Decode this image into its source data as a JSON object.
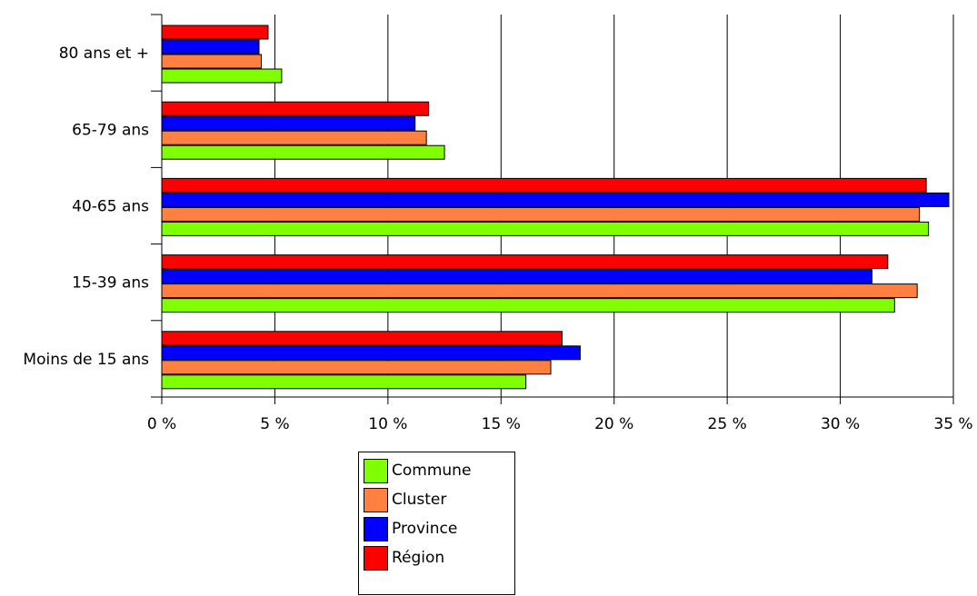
{
  "chart_data": {
    "type": "bar",
    "orientation": "horizontal",
    "categories": [
      "Moins de 15 ans",
      "15-39 ans",
      "40-65 ans",
      "65-79 ans",
      "80 ans et +"
    ],
    "series": [
      {
        "name": "Commune",
        "color": "#80ff00",
        "values": [
          16.1,
          32.4,
          33.9,
          12.5,
          5.3
        ]
      },
      {
        "name": "Cluster",
        "color": "#ff8040",
        "values": [
          17.2,
          33.4,
          33.5,
          11.7,
          4.4
        ]
      },
      {
        "name": "Province",
        "color": "#0000ff",
        "values": [
          18.5,
          31.4,
          34.8,
          11.2,
          4.3
        ]
      },
      {
        "name": "Région",
        "color": "#ff0000",
        "values": [
          17.7,
          32.1,
          33.8,
          11.8,
          4.7
        ]
      }
    ],
    "xticks": [
      "0 %",
      "5 %",
      "10 %",
      "15 %",
      "20 %",
      "25 %",
      "30 %",
      "35 %"
    ],
    "xlim": [
      0,
      35
    ],
    "grid": true,
    "legend_position": "bottom"
  }
}
